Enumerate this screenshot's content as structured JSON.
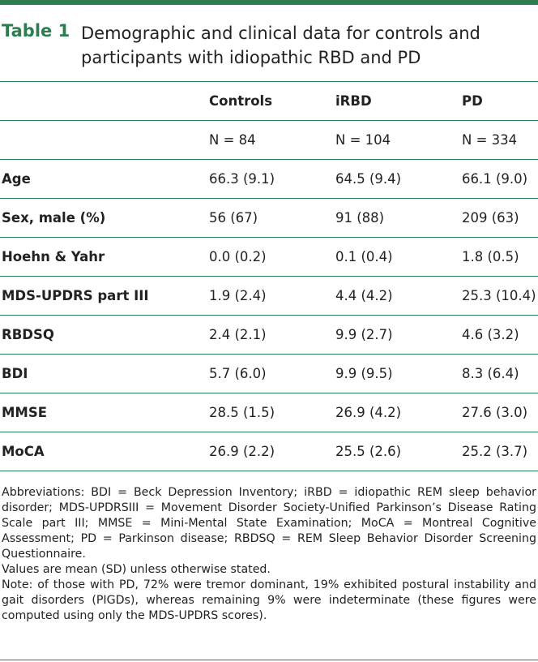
{
  "table": {
    "label": "Table 1",
    "title": "Demographic and clinical data for controls and participants with idiopathic RBD and PD",
    "columns": [
      "",
      "Controls",
      "iRBD",
      "PD"
    ],
    "n_row": [
      "",
      "N = 84",
      "N = 104",
      "N = 334"
    ],
    "rows": [
      {
        "label": "Age",
        "values": [
          "66.3 (9.1)",
          "64.5 (9.4)",
          "66.1 (9.0)"
        ]
      },
      {
        "label": "Sex, male (%)",
        "values": [
          "56 (67)",
          "91 (88)",
          "209 (63)"
        ]
      },
      {
        "label": "Hoehn & Yahr",
        "values": [
          "0.0 (0.2)",
          "0.1 (0.4)",
          "1.8 (0.5)"
        ]
      },
      {
        "label": "MDS-UPDRS part III",
        "values": [
          "1.9 (2.4)",
          "4.4 (4.2)",
          "25.3 (10.4)"
        ]
      },
      {
        "label": "RBDSQ",
        "values": [
          "2.4 (2.1)",
          "9.9 (2.7)",
          "4.6 (3.2)"
        ]
      },
      {
        "label": "BDI",
        "values": [
          "5.7 (6.0)",
          "9.9 (9.5)",
          "8.3 (6.4)"
        ]
      },
      {
        "label": "MMSE",
        "values": [
          "28.5 (1.5)",
          "26.9 (4.2)",
          "27.6 (3.0)"
        ]
      },
      {
        "label": "MoCA",
        "values": [
          "26.9 (2.2)",
          "25.5 (2.6)",
          "25.2 (3.7)"
        ]
      }
    ]
  },
  "footnotes": {
    "abbreviations": "Abbreviations: BDI = Beck Depression Inventory; iRBD = idiopathic REM sleep behavior disorder; MDS-UPDRSIII = Movement Disorder Society-Unified Parkinson’s Disease Rating Scale part III; MMSE = Mini-Mental State Examination; MoCA = Montreal Cognitive Assessment; PD = Parkinson disease; RBDSQ = REM Sleep Behavior Disorder Screening Questionnaire.",
    "values_note": "Values are mean (SD) unless otherwise stated.",
    "note": "Note: of those with PD, 72% were tremor dominant, 19% exhibited postural instability and gait disorders (PIGDs), whereas remaining 9% were indeterminate (these figures were computed using only the MDS-UPDRS scores)."
  },
  "colors": {
    "accent": "#2e7d4f",
    "text": "#222222"
  }
}
